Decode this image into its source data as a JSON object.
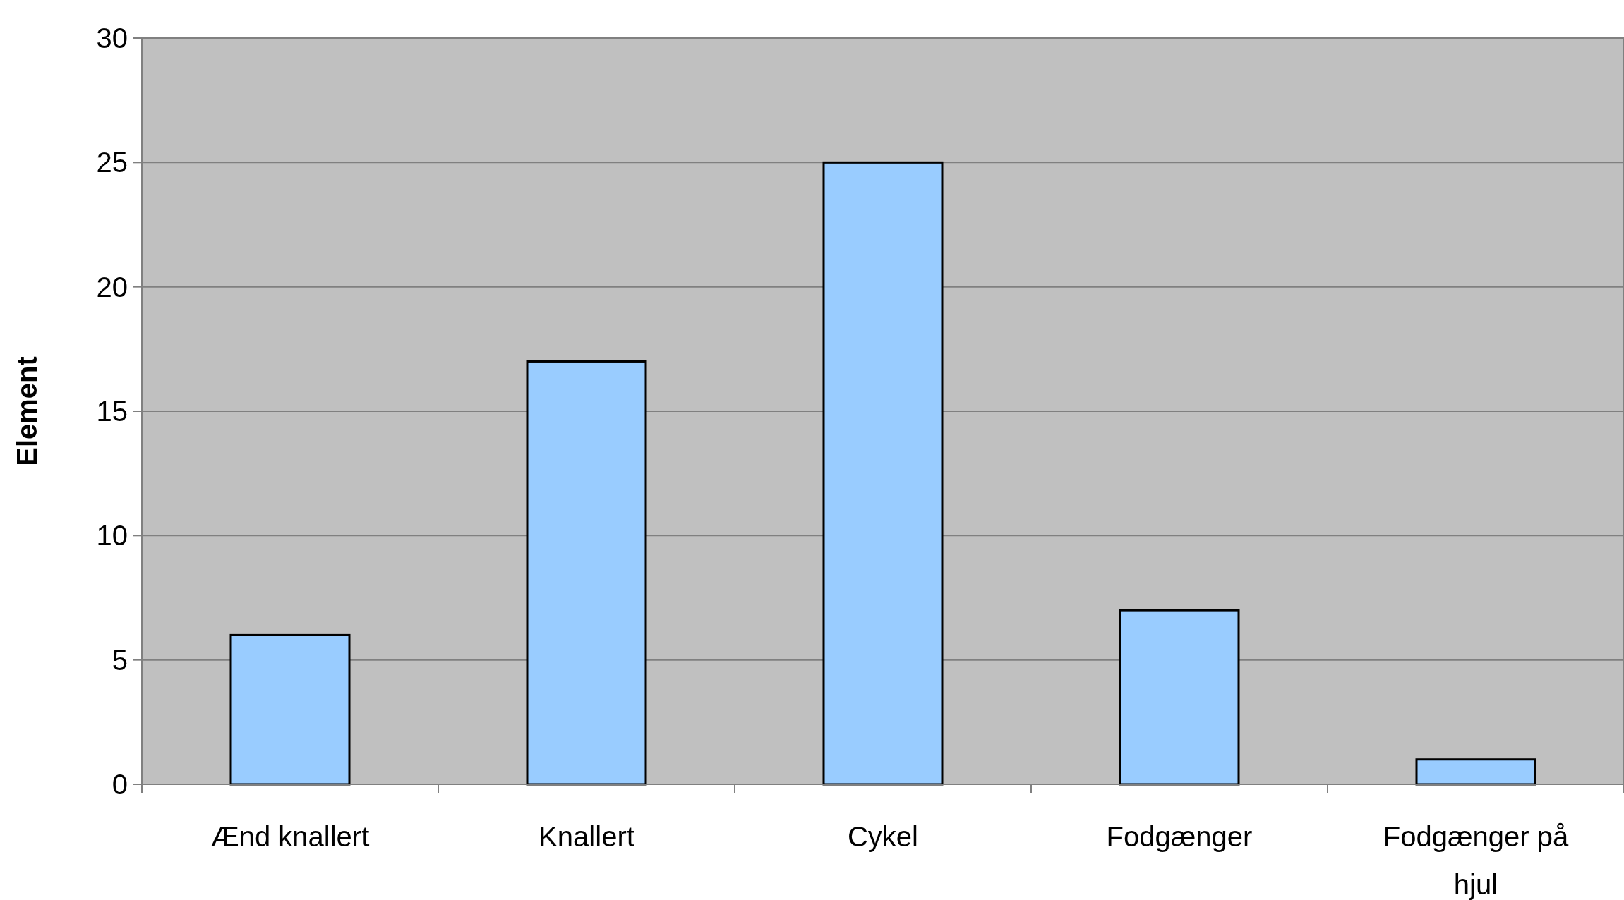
{
  "chart_data": {
    "type": "bar",
    "ylabel": "Element",
    "categories": [
      "Ænd knallert",
      "Knallert",
      "Cykel",
      "Fodgænger",
      "Fodgænger på hjul"
    ],
    "values": [
      6,
      17,
      25,
      7,
      1
    ],
    "color": "#99ccff",
    "ylim": [
      0,
      30
    ],
    "yticks": [
      0,
      5,
      10,
      15,
      20,
      25,
      30
    ],
    "grid": "y"
  }
}
